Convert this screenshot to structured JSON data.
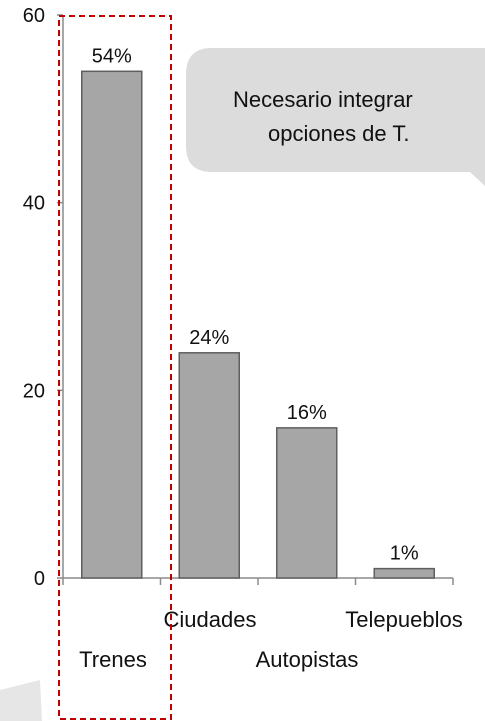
{
  "chart_data": {
    "type": "bar",
    "categories": [
      "Trenes",
      "Ciudades",
      "Autopistas",
      "Telepueblos"
    ],
    "values": [
      54,
      24,
      16,
      1
    ],
    "data_labels": [
      "54%",
      "24%",
      "16%",
      "1%"
    ],
    "ylim": [
      0,
      60
    ],
    "yticks": [
      0,
      20,
      40,
      60
    ],
    "grid": false,
    "bar_color": "#a6a6a6",
    "bar_edge_color": "#5f5f5f",
    "highlight_color": "#c00000"
  },
  "callout": {
    "lines": [
      "Necesario integrar",
      "opciones de T."
    ],
    "fill": "#dcdcdc"
  }
}
